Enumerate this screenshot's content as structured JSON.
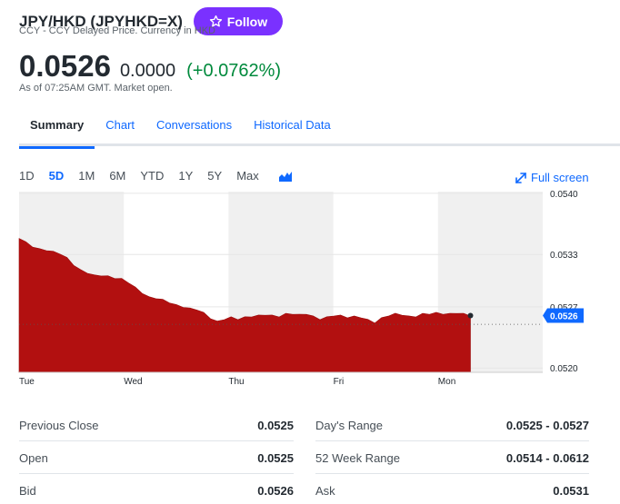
{
  "header": {
    "ticker": "JPY/HKD (JPYHKD=X)",
    "subtitle": "CCY - CCY Delayed Price. Currency in HKD",
    "follow_label": "Follow"
  },
  "quote": {
    "price": "0.0526",
    "change": "0.0000",
    "change_pct": "(+0.0762%)",
    "as_of": "As of 07:25AM GMT. Market open."
  },
  "tabs": [
    {
      "label": "Summary"
    },
    {
      "label": "Chart"
    },
    {
      "label": "Conversations"
    },
    {
      "label": "Historical Data"
    }
  ],
  "ranges": [
    "1D",
    "5D",
    "1M",
    "6M",
    "YTD",
    "1Y",
    "5Y",
    "Max"
  ],
  "active_range": "5D",
  "fullscreen_label": "Full screen",
  "chart_data": {
    "type": "area",
    "x_labels": [
      "Tue",
      "Wed",
      "Thu",
      "Fri",
      "Mon"
    ],
    "y_ticks": [
      "0.0540",
      "0.0533",
      "0.0527",
      "0.0520"
    ],
    "ylim": [
      0.05195,
      0.05402
    ],
    "current_label": "0.0526",
    "current_value": 0.0526,
    "previous_close": 0.0525,
    "fill_color": "#b21010",
    "values": [
      0.05349,
      0.05344,
      0.05339,
      0.05336,
      0.05335,
      0.05333,
      0.05331,
      0.05326,
      0.05318,
      0.05312,
      0.05309,
      0.05306,
      0.05306,
      0.05305,
      0.05303,
      0.05302,
      0.05298,
      0.05292,
      0.05286,
      0.05281,
      0.0528,
      0.05278,
      0.05275,
      0.05272,
      0.0527,
      0.05268,
      0.05267,
      0.05263,
      0.05257,
      0.05253,
      0.05256,
      0.05258,
      0.05256,
      0.05258,
      0.05259,
      0.0526,
      0.05261,
      0.0526,
      0.05259,
      0.05262,
      0.05262,
      0.05261,
      0.05262,
      0.05259,
      0.05256,
      0.05258,
      0.0526,
      0.0526,
      0.05258,
      0.05259,
      0.05258,
      0.05255,
      0.05252,
      0.05257,
      0.0526,
      0.05262,
      0.05261,
      0.05259,
      0.05259,
      0.05262,
      0.05262,
      0.05263,
      0.05262,
      0.05262,
      0.05263,
      0.05262,
      0.0526
    ],
    "shaded_days": [
      "Tue",
      "Thu",
      "Mon"
    ]
  },
  "stats": {
    "left": [
      {
        "label": "Previous Close",
        "value": "0.0525"
      },
      {
        "label": "Open",
        "value": "0.0525"
      },
      {
        "label": "Bid",
        "value": "0.0526"
      }
    ],
    "right": [
      {
        "label": "Day's Range",
        "value": "0.0525 - 0.0527"
      },
      {
        "label": "52 Week Range",
        "value": "0.0514 - 0.0612"
      },
      {
        "label": "Ask",
        "value": "0.0531"
      }
    ]
  }
}
